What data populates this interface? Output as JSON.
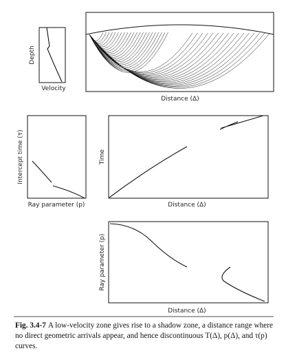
{
  "panels": {
    "velocity": {
      "y_label": "Depth",
      "x_label": "Velocity"
    },
    "rays": {
      "x_label": "Distance (Δ)"
    },
    "tau_p": {
      "y_label": "Intercept time (τ)",
      "x_label": "Ray parameter (p)"
    },
    "travel_time": {
      "y_label": "Time",
      "x_label": "Distance (Δ)"
    },
    "p_delta": {
      "y_label": "Ray parameter (p)",
      "x_label": "Distance (Δ)"
    }
  },
  "caption": {
    "label": "Fig. 3.4-7",
    "text": "A low-velocity zone gives rise to a shadow zone, a distance range where no direct geometric arrivals appear, and hence discontinuous T(Δ), p(Δ), and τ(p) curves."
  }
}
